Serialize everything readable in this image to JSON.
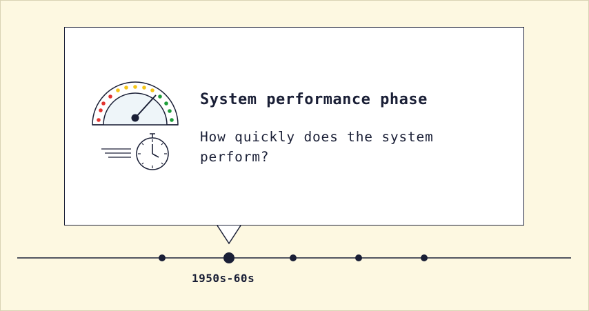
{
  "panel": {
    "title": "System performance phase",
    "description": "How quickly does the system perform?",
    "icons": [
      "speedometer-icon",
      "stopwatch-icon"
    ]
  },
  "timeline": {
    "active_label": "1950s-60s"
  },
  "colors": {
    "background": "#fdf8e1",
    "ink": "#1a1f36",
    "gauge_red": "#e3342f",
    "gauge_yellow": "#f5c518",
    "gauge_green": "#1e9e3a"
  }
}
